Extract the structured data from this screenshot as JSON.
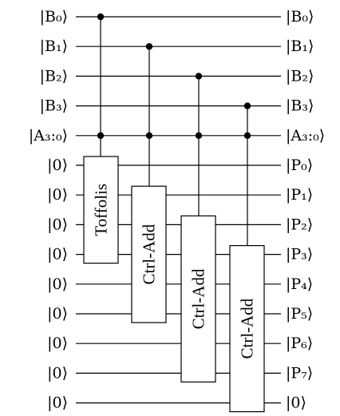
{
  "circuit": {
    "wires": [
      {
        "in": "|B₀⟩",
        "out": "|B₀⟩"
      },
      {
        "in": "|B₁⟩",
        "out": "|B₁⟩"
      },
      {
        "in": "|B₂⟩",
        "out": "|B₂⟩"
      },
      {
        "in": "|B₃⟩",
        "out": "|B₃⟩"
      },
      {
        "in": "|A₃:₀⟩",
        "out": "|A₃:₀⟩"
      },
      {
        "in": "|0⟩",
        "out": "|P₀⟩"
      },
      {
        "in": "|0⟩",
        "out": "|P₁⟩"
      },
      {
        "in": "|0⟩",
        "out": "|P₂⟩"
      },
      {
        "in": "|0⟩",
        "out": "|P₃⟩"
      },
      {
        "in": "|0⟩",
        "out": "|P₄⟩"
      },
      {
        "in": "|0⟩",
        "out": "|P₅⟩"
      },
      {
        "in": "|0⟩",
        "out": "|P₆⟩"
      },
      {
        "in": "|0⟩",
        "out": "|P₇⟩"
      },
      {
        "in": "|0⟩",
        "out": "|0⟩"
      }
    ],
    "gates": [
      {
        "label": "Toffolis",
        "controls": [
          0,
          4
        ],
        "first_wire": 5,
        "last_wire": 8
      },
      {
        "label": "Ctrl-Add",
        "controls": [
          1,
          4
        ],
        "first_wire": 6,
        "last_wire": 10
      },
      {
        "label": "Ctrl-Add",
        "controls": [
          2,
          4
        ],
        "first_wire": 7,
        "last_wire": 12
      },
      {
        "label": "Ctrl-Add",
        "controls": [
          3,
          4
        ],
        "first_wire": 8,
        "last_wire": 13
      }
    ]
  }
}
